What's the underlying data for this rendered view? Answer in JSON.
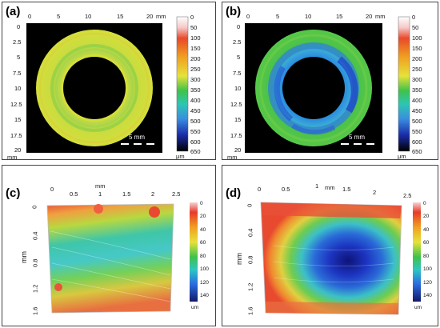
{
  "panels": {
    "a": {
      "label": "(a)",
      "x_ticks": [
        "0",
        "5",
        "10",
        "15",
        "20"
      ],
      "x_unit": "mm",
      "y_ticks": [
        "0",
        "2.5",
        "5",
        "7.5",
        "10",
        "12.5",
        "15",
        "17.5",
        "20"
      ],
      "y_unit": "mm",
      "scale_bar": "5 mm",
      "colorbar_ticks": [
        "0",
        "50",
        "100",
        "150",
        "200",
        "250",
        "300",
        "350",
        "400",
        "450",
        "500",
        "550",
        "600",
        "650"
      ],
      "colorbar_unit": "μm"
    },
    "b": {
      "label": "(b)",
      "x_ticks": [
        "0",
        "5",
        "10",
        "15",
        "20"
      ],
      "x_unit": "mm",
      "y_ticks": [
        "0",
        "2.5",
        "5",
        "7.5",
        "10",
        "12.5",
        "15",
        "17.5",
        "20"
      ],
      "y_unit": "mm",
      "scale_bar": "5 mm",
      "colorbar_ticks": [
        "0",
        "50",
        "100",
        "150",
        "200",
        "250",
        "300",
        "350",
        "400",
        "450",
        "500",
        "550",
        "600",
        "650"
      ],
      "colorbar_unit": "μm"
    },
    "c": {
      "label": "(c)",
      "x_ticks": [
        "0",
        "0.5",
        "1",
        "1.5",
        "2",
        "2.5"
      ],
      "x_unit": "mm",
      "y_ticks": [
        "0",
        "0.4",
        "0.8",
        "1.2",
        "1.6"
      ],
      "y_unit": "mm",
      "colorbar_ticks": [
        "0",
        "20",
        "40",
        "60",
        "80",
        "100",
        "120",
        "140"
      ],
      "colorbar_unit": "um"
    },
    "d": {
      "label": "(d)",
      "x_ticks": [
        "0",
        "0.5",
        "1",
        "1.5",
        "2",
        "2.5"
      ],
      "x_unit": "mm",
      "y_ticks": [
        "0",
        "0.4",
        "0.8",
        "1.2",
        "1.6"
      ],
      "y_unit": "mm",
      "colorbar_ticks": [
        "0",
        "20",
        "40",
        "60",
        "80",
        "100",
        "120",
        "140"
      ],
      "colorbar_unit": "um"
    }
  },
  "colors": {
    "panel_a_ring": "#c8d83a",
    "panel_a_band": "#9fd23e",
    "panel_b_ring": "#4fc24a",
    "panel_b_wear": "#2a6fd8",
    "background_black": "#000000"
  }
}
